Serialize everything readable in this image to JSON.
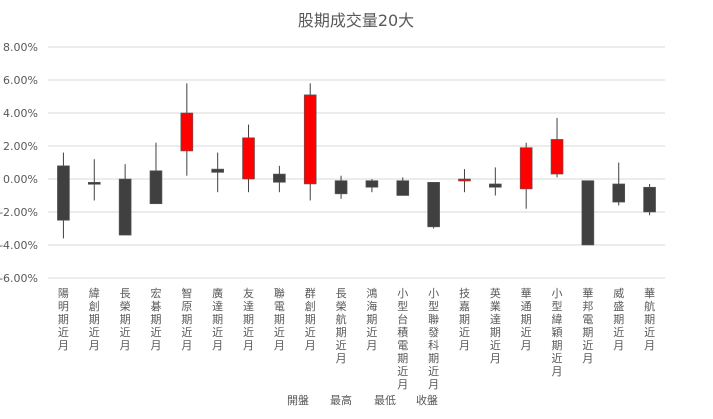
{
  "chart_data": {
    "type": "candlestick",
    "title": "股期成交量20大",
    "ylim": [
      -0.06,
      0.08
    ],
    "y_ticks": [
      {
        "value": 0.08,
        "label": "8.00%"
      },
      {
        "value": 0.06,
        "label": "6.00%"
      },
      {
        "value": 0.04,
        "label": "4.00%"
      },
      {
        "value": 0.02,
        "label": "2.00%"
      },
      {
        "value": 0.0,
        "label": "0.00%"
      },
      {
        "value": -0.02,
        "label": "-2.00%"
      },
      {
        "value": -0.04,
        "label": "-4.00%"
      },
      {
        "value": -0.06,
        "label": "-6.00%"
      }
    ],
    "legend": [
      "開盤",
      "最高",
      "最低",
      "收盤"
    ],
    "colors": {
      "up": "#ff0000",
      "down": "#404040",
      "wick": "#404040",
      "grid": "#d9d9d9",
      "text": "#595959"
    },
    "categories": [
      "陽明期近月",
      "緯創期近月",
      "長榮期近月",
      "宏碁期近月",
      "智原期近月",
      "廣達期近月",
      "友達期近月",
      "聯電期近月",
      "群創期近月",
      "長榮航期近月",
      "鴻海期近月",
      "小型台積電期近月",
      "小型聯發科期近月",
      "技嘉期近月",
      "英業達期近月",
      "華通期近月",
      "小型緯穎期近月",
      "華邦電期近月",
      "威盛期近月",
      "華航期近月"
    ],
    "open": [
      0.008,
      -0.002,
      0.0,
      0.005,
      0.017,
      0.006,
      0.0,
      0.003,
      -0.003,
      -0.001,
      -0.001,
      -0.001,
      -0.002,
      -0.001,
      -0.003,
      -0.006,
      0.003,
      -0.001,
      -0.003,
      -0.005
    ],
    "high": [
      0.016,
      0.012,
      0.009,
      0.022,
      0.058,
      0.016,
      0.033,
      0.008,
      0.058,
      0.002,
      0.0,
      0.001,
      -0.002,
      0.006,
      0.007,
      0.022,
      0.037,
      -0.001,
      0.01,
      -0.003
    ],
    "low": [
      -0.036,
      -0.013,
      -0.034,
      -0.015,
      0.002,
      -0.008,
      -0.008,
      -0.008,
      -0.013,
      -0.012,
      -0.008,
      -0.01,
      -0.03,
      -0.008,
      -0.01,
      -0.018,
      0.001,
      -0.04,
      -0.016,
      -0.022
    ],
    "close": [
      -0.025,
      -0.003,
      -0.034,
      -0.015,
      0.04,
      0.004,
      0.025,
      -0.002,
      0.051,
      -0.009,
      -0.005,
      -0.01,
      -0.029,
      0.0,
      -0.005,
      0.019,
      0.024,
      -0.04,
      -0.014,
      -0.02
    ]
  }
}
